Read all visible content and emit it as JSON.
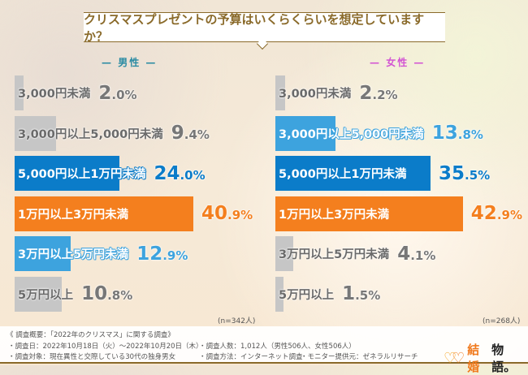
{
  "chart_data": {
    "type": "bar",
    "title": "クリスマスプレゼントの予算はいくらくらいを想定していますか？",
    "unit": "%",
    "colors": {
      "grey": "#c6c6c6",
      "blue": "#0b7cc9",
      "orange": "#f47f1e",
      "light_blue": "#3da3de"
    },
    "panels": [
      {
        "label": "男性",
        "label_color": "#2a8ba3",
        "n": "(n=342人)",
        "categories": [
          "3,000円未満",
          "3,000円以上5,000円未満",
          "5,000円以上1万円未満",
          "1万円以上3万円未満",
          "3万円以上5万円未満",
          "5万円以上"
        ],
        "values": [
          2.0,
          9.4,
          24.0,
          40.9,
          12.9,
          10.8
        ],
        "bar_colors": [
          "grey",
          "grey",
          "blue",
          "orange",
          "light_blue",
          "grey"
        ]
      },
      {
        "label": "女性",
        "label_color": "#d355d3",
        "n": "(n=268人)",
        "categories": [
          "3,000円未満",
          "3,000円以上5,000円未満",
          "5,000円以上1万円未満",
          "1万円以上3万円未満",
          "3万円以上5万円未満",
          "5万円以上"
        ],
        "values": [
          2.2,
          13.8,
          35.5,
          42.9,
          4.1,
          1.5
        ],
        "bar_colors": [
          "grey",
          "light_blue",
          "blue",
          "orange",
          "grey",
          "grey"
        ]
      }
    ]
  },
  "footer": {
    "overview": "《 調査概要：「2022年のクリスマス」に関する調査》",
    "date": "・調査日：2022年10月18日（火）～2022年10月20日（木）",
    "people": "・調査人数：1,012人（男性506人、女性506人）",
    "target": "・調査対象：現在異性と交際している30代の独身男女",
    "method": "・調査方法：インターネット調査",
    "monitor": "・モニター提供元：ゼネラルリサーチ"
  },
  "logo": {
    "text_a": "結婚",
    "text_b": "物語。"
  }
}
